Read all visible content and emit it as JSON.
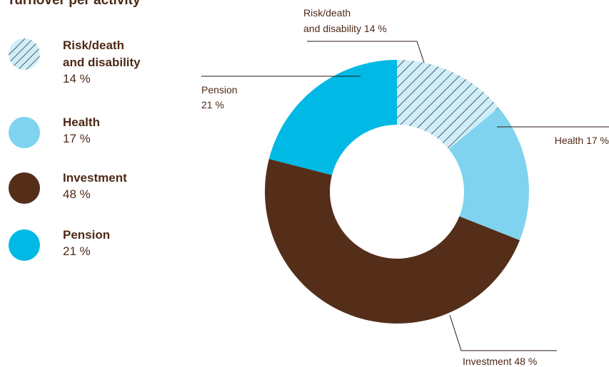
{
  "title": "Turnover per activity",
  "chart_data": {
    "type": "pie",
    "title": "Turnover per activity",
    "slices": [
      {
        "name": "Risk/death and disability",
        "legend_line1": "Risk/death",
        "legend_line2": "and disability",
        "value": 14,
        "value_label": "14 %",
        "color": "#cfeef9",
        "pattern": "hatch",
        "callout": [
          "Risk/death",
          "and disability 14 %"
        ]
      },
      {
        "name": "Health",
        "value": 17,
        "value_label": "17 %",
        "color": "#7fd3ef",
        "callout": [
          "Health 17 %"
        ]
      },
      {
        "name": "Investment",
        "value": 48,
        "value_label": "48 %",
        "color": "#542e19",
        "callout": [
          "Investment 48 %"
        ]
      },
      {
        "name": "Pension",
        "value": 21,
        "value_label": "21 %",
        "color": "#00b9e4",
        "callout": [
          "Pension",
          "21 %"
        ]
      }
    ]
  }
}
